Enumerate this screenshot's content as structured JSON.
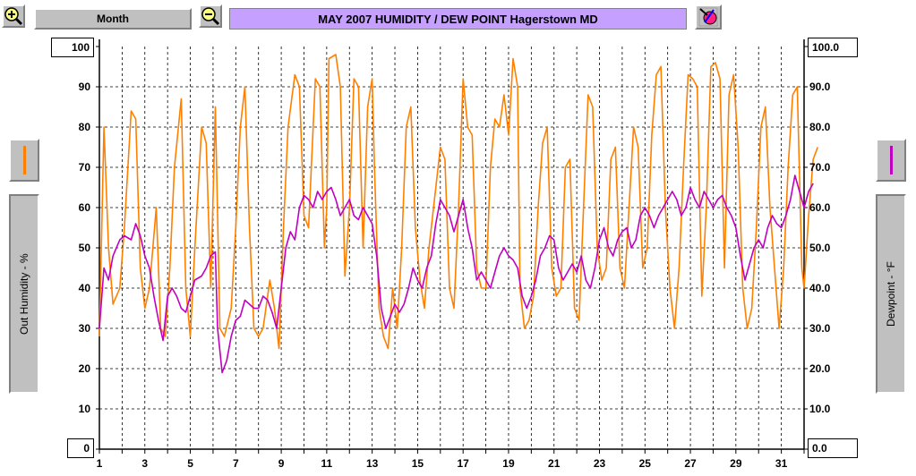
{
  "toolbar": {
    "range_label": "Month",
    "zoom_in_icon": "magnifier-plus-icon",
    "zoom_out_icon": "magnifier-minus-icon",
    "settings_icon": "color-palette-icon"
  },
  "chart_data": {
    "type": "line",
    "title": "MAY 2007  HUMIDITY / DEW POINT  Hagerstown MD",
    "x_ticks": [
      "1",
      "3",
      "5",
      "7",
      "9",
      "11",
      "13",
      "15",
      "17",
      "19",
      "21",
      "23",
      "25",
      "27",
      "29",
      "31"
    ],
    "x_range": [
      1,
      32
    ],
    "y_left": {
      "label": "Out Humidity - %",
      "range": [
        0,
        100
      ],
      "ticks": [
        "0",
        "10",
        "20",
        "30",
        "40",
        "50",
        "60",
        "70",
        "80",
        "90",
        "100"
      ],
      "max_box": "100",
      "min_box": "0"
    },
    "y_right": {
      "label": "Dewpoint - °F",
      "range": [
        0.0,
        100.0
      ],
      "ticks": [
        "0.0",
        "10.0",
        "20.0",
        "30.0",
        "40.0",
        "50.0",
        "60.0",
        "70.0",
        "80.0",
        "90.0",
        "100.0"
      ],
      "max_box": "100.0",
      "min_box": "0.0"
    },
    "grid": true,
    "series": [
      {
        "name": "Out Humidity",
        "color": "#ff8000",
        "axis": "left",
        "points": [
          [
            1.0,
            28
          ],
          [
            1.2,
            80
          ],
          [
            1.4,
            50
          ],
          [
            1.6,
            36
          ],
          [
            1.9,
            40
          ],
          [
            2.1,
            55
          ],
          [
            2.4,
            84
          ],
          [
            2.6,
            82
          ],
          [
            2.8,
            45
          ],
          [
            3.0,
            35
          ],
          [
            3.2,
            40
          ],
          [
            3.5,
            60
          ],
          [
            3.7,
            30
          ],
          [
            3.9,
            28
          ],
          [
            4.1,
            45
          ],
          [
            4.3,
            70
          ],
          [
            4.6,
            87
          ],
          [
            4.8,
            40
          ],
          [
            5.0,
            28
          ],
          [
            5.2,
            50
          ],
          [
            5.5,
            80
          ],
          [
            5.7,
            76
          ],
          [
            5.9,
            40
          ],
          [
            6.1,
            85
          ],
          [
            6.3,
            30
          ],
          [
            6.5,
            28
          ],
          [
            6.8,
            35
          ],
          [
            7.0,
            55
          ],
          [
            7.2,
            80
          ],
          [
            7.4,
            90
          ],
          [
            7.6,
            55
          ],
          [
            7.8,
            30
          ],
          [
            8.0,
            28
          ],
          [
            8.2,
            30
          ],
          [
            8.5,
            42
          ],
          [
            8.7,
            35
          ],
          [
            8.9,
            25
          ],
          [
            9.1,
            55
          ],
          [
            9.3,
            80
          ],
          [
            9.6,
            93
          ],
          [
            9.8,
            90
          ],
          [
            10.0,
            58
          ],
          [
            10.2,
            55
          ],
          [
            10.5,
            92
          ],
          [
            10.7,
            90
          ],
          [
            10.9,
            50
          ],
          [
            11.0,
            60
          ],
          [
            11.1,
            97
          ],
          [
            11.4,
            98
          ],
          [
            11.6,
            90
          ],
          [
            11.8,
            43
          ],
          [
            12.0,
            60
          ],
          [
            12.2,
            92
          ],
          [
            12.4,
            90
          ],
          [
            12.6,
            50
          ],
          [
            12.8,
            85
          ],
          [
            13.0,
            92
          ],
          [
            13.1,
            70
          ],
          [
            13.3,
            35
          ],
          [
            13.5,
            28
          ],
          [
            13.7,
            25
          ],
          [
            13.9,
            40
          ],
          [
            14.1,
            30
          ],
          [
            14.3,
            50
          ],
          [
            14.5,
            80
          ],
          [
            14.7,
            85
          ],
          [
            14.9,
            55
          ],
          [
            15.1,
            42
          ],
          [
            15.3,
            35
          ],
          [
            15.5,
            50
          ],
          [
            15.7,
            60
          ],
          [
            16.0,
            75
          ],
          [
            16.2,
            72
          ],
          [
            16.4,
            40
          ],
          [
            16.6,
            35
          ],
          [
            16.8,
            60
          ],
          [
            17.0,
            92
          ],
          [
            17.2,
            80
          ],
          [
            17.4,
            78
          ],
          [
            17.6,
            45
          ],
          [
            17.8,
            40
          ],
          [
            18.0,
            40
          ],
          [
            18.2,
            70
          ],
          [
            18.4,
            82
          ],
          [
            18.6,
            80
          ],
          [
            18.8,
            88
          ],
          [
            19.0,
            78
          ],
          [
            19.2,
            97
          ],
          [
            19.4,
            90
          ],
          [
            19.5,
            40
          ],
          [
            19.7,
            30
          ],
          [
            19.9,
            32
          ],
          [
            20.1,
            38
          ],
          [
            20.3,
            60
          ],
          [
            20.5,
            76
          ],
          [
            20.7,
            80
          ],
          [
            20.9,
            45
          ],
          [
            21.1,
            38
          ],
          [
            21.3,
            40
          ],
          [
            21.5,
            70
          ],
          [
            21.7,
            72
          ],
          [
            21.9,
            35
          ],
          [
            22.1,
            32
          ],
          [
            22.3,
            60
          ],
          [
            22.5,
            88
          ],
          [
            22.7,
            85
          ],
          [
            22.9,
            50
          ],
          [
            23.1,
            42
          ],
          [
            23.3,
            45
          ],
          [
            23.5,
            72
          ],
          [
            23.7,
            75
          ],
          [
            23.9,
            45
          ],
          [
            24.1,
            40
          ],
          [
            24.3,
            60
          ],
          [
            24.5,
            80
          ],
          [
            24.7,
            75
          ],
          [
            24.9,
            45
          ],
          [
            25.1,
            50
          ],
          [
            25.3,
            78
          ],
          [
            25.5,
            93
          ],
          [
            25.7,
            95
          ],
          [
            25.9,
            60
          ],
          [
            26.1,
            40
          ],
          [
            26.3,
            30
          ],
          [
            26.5,
            45
          ],
          [
            26.7,
            70
          ],
          [
            26.9,
            93
          ],
          [
            27.1,
            92
          ],
          [
            27.3,
            90
          ],
          [
            27.5,
            38
          ],
          [
            27.7,
            60
          ],
          [
            27.9,
            95
          ],
          [
            28.1,
            96
          ],
          [
            28.3,
            92
          ],
          [
            28.5,
            45
          ],
          [
            28.7,
            88
          ],
          [
            28.9,
            93
          ],
          [
            29.1,
            75
          ],
          [
            29.3,
            40
          ],
          [
            29.5,
            30
          ],
          [
            29.7,
            35
          ],
          [
            29.9,
            55
          ],
          [
            30.1,
            80
          ],
          [
            30.3,
            85
          ],
          [
            30.5,
            60
          ],
          [
            30.7,
            45
          ],
          [
            30.9,
            30
          ],
          [
            31.1,
            45
          ],
          [
            31.3,
            70
          ],
          [
            31.5,
            88
          ],
          [
            31.7,
            90
          ],
          [
            31.9,
            45
          ],
          [
            32.0,
            40
          ],
          [
            32.2,
            58
          ],
          [
            32.4,
            72
          ],
          [
            32.6,
            75
          ]
        ]
      },
      {
        "name": "Dewpoint",
        "color": "#c000c0",
        "axis": "right",
        "points": [
          [
            1.0,
            30
          ],
          [
            1.2,
            45
          ],
          [
            1.4,
            42
          ],
          [
            1.6,
            48
          ],
          [
            1.9,
            52
          ],
          [
            2.1,
            53
          ],
          [
            2.4,
            52
          ],
          [
            2.6,
            56
          ],
          [
            2.8,
            53
          ],
          [
            3.0,
            48
          ],
          [
            3.2,
            45
          ],
          [
            3.4,
            38
          ],
          [
            3.6,
            32
          ],
          [
            3.8,
            27
          ],
          [
            4.0,
            38
          ],
          [
            4.2,
            40
          ],
          [
            4.4,
            38
          ],
          [
            4.6,
            35
          ],
          [
            4.8,
            34
          ],
          [
            5.0,
            38
          ],
          [
            5.2,
            42
          ],
          [
            5.5,
            43
          ],
          [
            5.7,
            45
          ],
          [
            5.9,
            48
          ],
          [
            6.1,
            49
          ],
          [
            6.2,
            30
          ],
          [
            6.4,
            19
          ],
          [
            6.6,
            22
          ],
          [
            6.8,
            28
          ],
          [
            7.0,
            32
          ],
          [
            7.2,
            33
          ],
          [
            7.4,
            37
          ],
          [
            7.6,
            36
          ],
          [
            7.8,
            35
          ],
          [
            8.0,
            35
          ],
          [
            8.2,
            38
          ],
          [
            8.4,
            37
          ],
          [
            8.6,
            34
          ],
          [
            8.8,
            30
          ],
          [
            9.0,
            40
          ],
          [
            9.2,
            50
          ],
          [
            9.4,
            54
          ],
          [
            9.6,
            52
          ],
          [
            9.8,
            60
          ],
          [
            10.0,
            63
          ],
          [
            10.2,
            62
          ],
          [
            10.4,
            60
          ],
          [
            10.6,
            64
          ],
          [
            10.8,
            62
          ],
          [
            11.0,
            64
          ],
          [
            11.2,
            65
          ],
          [
            11.4,
            62
          ],
          [
            11.6,
            58
          ],
          [
            11.8,
            60
          ],
          [
            12.0,
            62
          ],
          [
            12.2,
            58
          ],
          [
            12.4,
            57
          ],
          [
            12.6,
            60
          ],
          [
            12.8,
            58
          ],
          [
            13.0,
            56
          ],
          [
            13.2,
            48
          ],
          [
            13.4,
            35
          ],
          [
            13.6,
            30
          ],
          [
            13.8,
            33
          ],
          [
            14.0,
            36
          ],
          [
            14.2,
            34
          ],
          [
            14.4,
            36
          ],
          [
            14.6,
            40
          ],
          [
            14.8,
            45
          ],
          [
            15.0,
            42
          ],
          [
            15.2,
            40
          ],
          [
            15.4,
            45
          ],
          [
            15.6,
            48
          ],
          [
            15.8,
            56
          ],
          [
            16.0,
            62
          ],
          [
            16.2,
            60
          ],
          [
            16.4,
            58
          ],
          [
            16.6,
            54
          ],
          [
            16.8,
            58
          ],
          [
            17.0,
            62
          ],
          [
            17.2,
            55
          ],
          [
            17.4,
            50
          ],
          [
            17.6,
            42
          ],
          [
            17.8,
            44
          ],
          [
            18.0,
            42
          ],
          [
            18.2,
            40
          ],
          [
            18.4,
            44
          ],
          [
            18.6,
            48
          ],
          [
            18.8,
            50
          ],
          [
            19.0,
            48
          ],
          [
            19.2,
            47
          ],
          [
            19.4,
            45
          ],
          [
            19.6,
            38
          ],
          [
            19.8,
            35
          ],
          [
            20.0,
            38
          ],
          [
            20.2,
            42
          ],
          [
            20.4,
            48
          ],
          [
            20.6,
            50
          ],
          [
            20.8,
            53
          ],
          [
            21.0,
            52
          ],
          [
            21.2,
            45
          ],
          [
            21.4,
            42
          ],
          [
            21.6,
            44
          ],
          [
            21.8,
            46
          ],
          [
            22.0,
            44
          ],
          [
            22.2,
            48
          ],
          [
            22.4,
            42
          ],
          [
            22.6,
            40
          ],
          [
            22.8,
            45
          ],
          [
            23.0,
            52
          ],
          [
            23.2,
            55
          ],
          [
            23.4,
            50
          ],
          [
            23.6,
            48
          ],
          [
            23.8,
            52
          ],
          [
            24.0,
            54
          ],
          [
            24.2,
            55
          ],
          [
            24.4,
            50
          ],
          [
            24.6,
            52
          ],
          [
            24.8,
            58
          ],
          [
            25.0,
            60
          ],
          [
            25.2,
            58
          ],
          [
            25.4,
            55
          ],
          [
            25.6,
            58
          ],
          [
            25.8,
            60
          ],
          [
            26.0,
            62
          ],
          [
            26.2,
            64
          ],
          [
            26.4,
            62
          ],
          [
            26.6,
            58
          ],
          [
            26.8,
            60
          ],
          [
            27.0,
            65
          ],
          [
            27.2,
            62
          ],
          [
            27.4,
            60
          ],
          [
            27.6,
            64
          ],
          [
            27.8,
            62
          ],
          [
            28.0,
            60
          ],
          [
            28.2,
            62
          ],
          [
            28.4,
            63
          ],
          [
            28.6,
            60
          ],
          [
            28.8,
            58
          ],
          [
            29.0,
            55
          ],
          [
            29.2,
            48
          ],
          [
            29.4,
            42
          ],
          [
            29.6,
            46
          ],
          [
            29.8,
            50
          ],
          [
            30.0,
            52
          ],
          [
            30.2,
            50
          ],
          [
            30.4,
            55
          ],
          [
            30.6,
            58
          ],
          [
            30.8,
            56
          ],
          [
            31.0,
            55
          ],
          [
            31.2,
            58
          ],
          [
            31.4,
            62
          ],
          [
            31.6,
            68
          ],
          [
            31.8,
            64
          ],
          [
            32.0,
            60
          ],
          [
            32.2,
            64
          ],
          [
            32.4,
            66
          ]
        ]
      }
    ]
  }
}
